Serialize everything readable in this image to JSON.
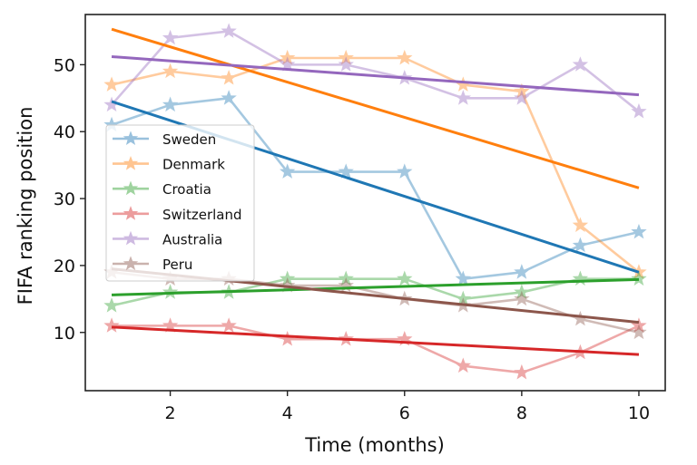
{
  "chart_data": {
    "type": "line",
    "title": "",
    "xlabel": "Time (months)",
    "ylabel": "FIFA ranking position",
    "xlim": [
      0.55,
      10.45
    ],
    "ylim": [
      1.3,
      57.5
    ],
    "xticks": [
      2,
      4,
      6,
      8,
      10
    ],
    "yticks": [
      10,
      20,
      30,
      40,
      50
    ],
    "grid": false,
    "legend_position": "center-left",
    "x": [
      1,
      2,
      3,
      4,
      5,
      6,
      7,
      8,
      9,
      10
    ],
    "series": [
      {
        "name": "Sweden",
        "color": "#1f77b4",
        "values": [
          41,
          44,
          45,
          34,
          34,
          34,
          18,
          19,
          23,
          25
        ],
        "trend": [
          44.5,
          19.0
        ]
      },
      {
        "name": "Denmark",
        "color": "#ff7f0e",
        "values": [
          47,
          49,
          48,
          51,
          51,
          51,
          47,
          46,
          26,
          19
        ],
        "trend": [
          55.3,
          31.6
        ]
      },
      {
        "name": "Croatia",
        "color": "#2ca02c",
        "values": [
          14,
          16,
          16,
          18,
          18,
          18,
          15,
          16,
          18,
          18
        ],
        "trend": [
          15.6,
          17.9
        ]
      },
      {
        "name": "Switzerland",
        "color": "#d62728",
        "values": [
          11,
          11,
          11,
          9,
          9,
          9,
          5,
          4,
          7,
          11
        ],
        "trend": [
          10.8,
          6.7
        ]
      },
      {
        "name": "Australia",
        "color": "#9467bd",
        "values": [
          44,
          54,
          55,
          50,
          50,
          48,
          45,
          45,
          50,
          43
        ],
        "trend": [
          51.2,
          45.5
        ]
      },
      {
        "name": "Peru",
        "color": "#8c564b",
        "values": [
          19,
          18,
          18,
          17,
          17,
          15,
          14,
          15,
          12,
          10
        ],
        "trend": [
          19.5,
          11.5
        ]
      }
    ]
  }
}
